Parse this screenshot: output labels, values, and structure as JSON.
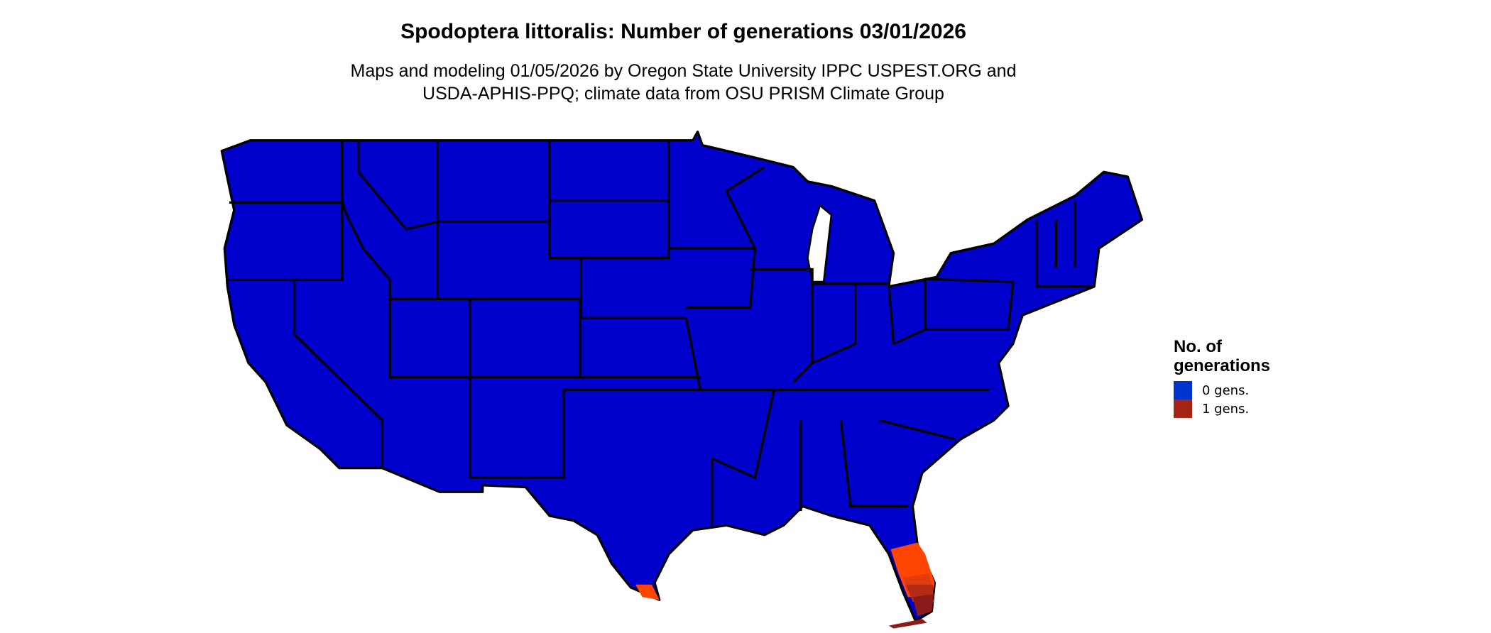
{
  "title": "Spodoptera littoralis: Number of generations 03/01/2026",
  "subtitle_line1": "Maps and modeling 01/05/2026 by Oregon State University IPPC USPEST.ORG and",
  "subtitle_line2": "USDA-APHIS-PPQ; climate data from OSU PRISM Climate Group",
  "legend": {
    "title_line1": "No. of",
    "title_line2": "generations",
    "items": [
      {
        "label": "0 gens.",
        "color": "#0033CC"
      },
      {
        "label": "1 gens.",
        "color": "#A62416"
      }
    ]
  },
  "map_colors": {
    "zero_generations": "#0000CC",
    "partial_generation_shades": [
      "#FF4500",
      "#E03C10",
      "#B82A18",
      "#8B1A1A"
    ],
    "state_borders": "#000000"
  }
}
